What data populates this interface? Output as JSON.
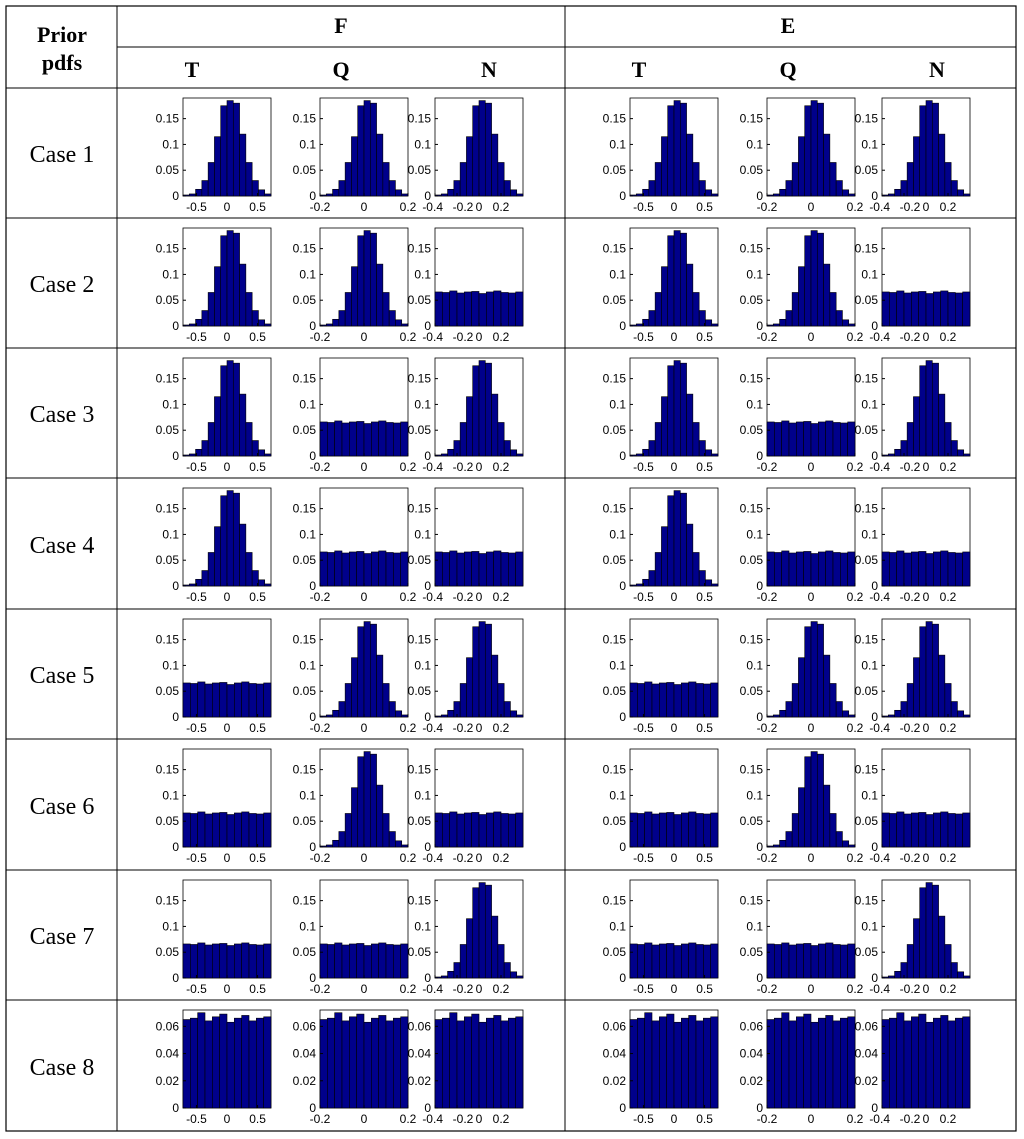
{
  "table": {
    "corner_line1": "Prior",
    "corner_line2": "pdfs",
    "groups": [
      "F",
      "E"
    ],
    "columns": [
      "T",
      "Q",
      "N"
    ],
    "rows": [
      "Case 1",
      "Case 2",
      "Case 3",
      "Case 4",
      "Case 5",
      "Case 6",
      "Case 7",
      "Case 8"
    ]
  },
  "colors": {
    "bar_fill": "#00008B",
    "bar_edge": "#000000",
    "grid_line": "#000000"
  },
  "chart_data": {
    "type": "bar",
    "description_of_layout": "8 case rows x 2 groups (F, E) x 3 variables (T, Q, N); each panel is a histogram of probability per bin",
    "axes": {
      "T": {
        "xlim": [
          -0.72,
          0.72
        ],
        "xticks": [
          -0.5,
          0,
          0.5
        ],
        "xticklabels": [
          "-0.5",
          "0",
          "0.5"
        ]
      },
      "Q": {
        "xlim": [
          -0.2,
          0.2
        ],
        "xticks": [
          -0.2,
          0,
          0.2
        ],
        "xticklabels": [
          "-0.2",
          "0",
          "0.2"
        ]
      },
      "N": {
        "xlim": [
          -0.4,
          0.4
        ],
        "xticks": [
          -0.4,
          -0.2,
          0,
          0.2
        ],
        "xticklabels": [
          "-0.4",
          "-0.2",
          "0",
          "0.2"
        ]
      }
    },
    "ylim_peaked": [
      0,
      0.19
    ],
    "yticks_peaked": [
      0,
      0.05,
      0.1,
      0.15
    ],
    "yticklabels_peaked": [
      "0",
      "0.05",
      "0.1",
      "0.15"
    ],
    "ylim_case8": [
      0,
      0.072
    ],
    "yticks_case8": [
      0,
      0.02,
      0.04,
      0.06
    ],
    "yticklabels_case8": [
      "0",
      "0.02",
      "0.04",
      "0.06"
    ],
    "normal_bins": [
      0.002,
      0.004,
      0.013,
      0.03,
      0.065,
      0.115,
      0.175,
      0.185,
      0.18,
      0.12,
      0.065,
      0.03,
      0.012,
      0.004
    ],
    "uniform_bins": [
      0.066,
      0.065,
      0.068,
      0.064,
      0.066,
      0.067,
      0.063,
      0.066,
      0.068,
      0.065,
      0.064,
      0.066
    ],
    "uniform_bins_case8": [
      0.065,
      0.066,
      0.07,
      0.064,
      0.067,
      0.069,
      0.063,
      0.066,
      0.068,
      0.064,
      0.066,
      0.067
    ],
    "panel_shapes": {
      "Case 1": [
        "normal",
        "normal",
        "normal"
      ],
      "Case 2": [
        "normal",
        "normal",
        "uniform"
      ],
      "Case 3": [
        "normal",
        "uniform",
        "normal"
      ],
      "Case 4": [
        "normal",
        "uniform",
        "uniform"
      ],
      "Case 5": [
        "uniform",
        "normal",
        "normal"
      ],
      "Case 6": [
        "uniform",
        "normal",
        "uniform"
      ],
      "Case 7": [
        "uniform",
        "uniform",
        "normal"
      ],
      "Case 8": [
        "uniform",
        "uniform",
        "uniform"
      ]
    }
  }
}
